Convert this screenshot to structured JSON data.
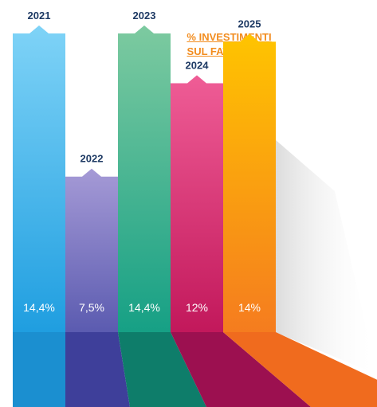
{
  "chart_data": {
    "type": "bar",
    "title_lines": [
      "% INVESTIMENTI",
      "SUL FATTURATO"
    ],
    "categories": [
      "2021",
      "2022",
      "2023",
      "2024",
      "2025"
    ],
    "values": [
      14.4,
      7.5,
      14.4,
      12,
      14
    ],
    "value_labels": [
      "14,4%",
      "7,5%",
      "14,4%",
      "12%",
      "14%"
    ],
    "colors": [
      {
        "top": "#7fd3f7",
        "bottom": "#1f9ee0",
        "shadow": "#1b8fd0"
      },
      {
        "top": "#a59ad6",
        "bottom": "#5b5bb0",
        "shadow": "#3e3f9a"
      },
      {
        "top": "#7dcaa0",
        "bottom": "#16a085",
        "shadow": "#0e7d6a"
      },
      {
        "top": "#ef5d96",
        "bottom": "#c2185b",
        "shadow": "#9c1050"
      },
      {
        "top": "#ffc400",
        "bottom": "#f57c1f",
        "shadow": "#f06b1e"
      }
    ]
  }
}
